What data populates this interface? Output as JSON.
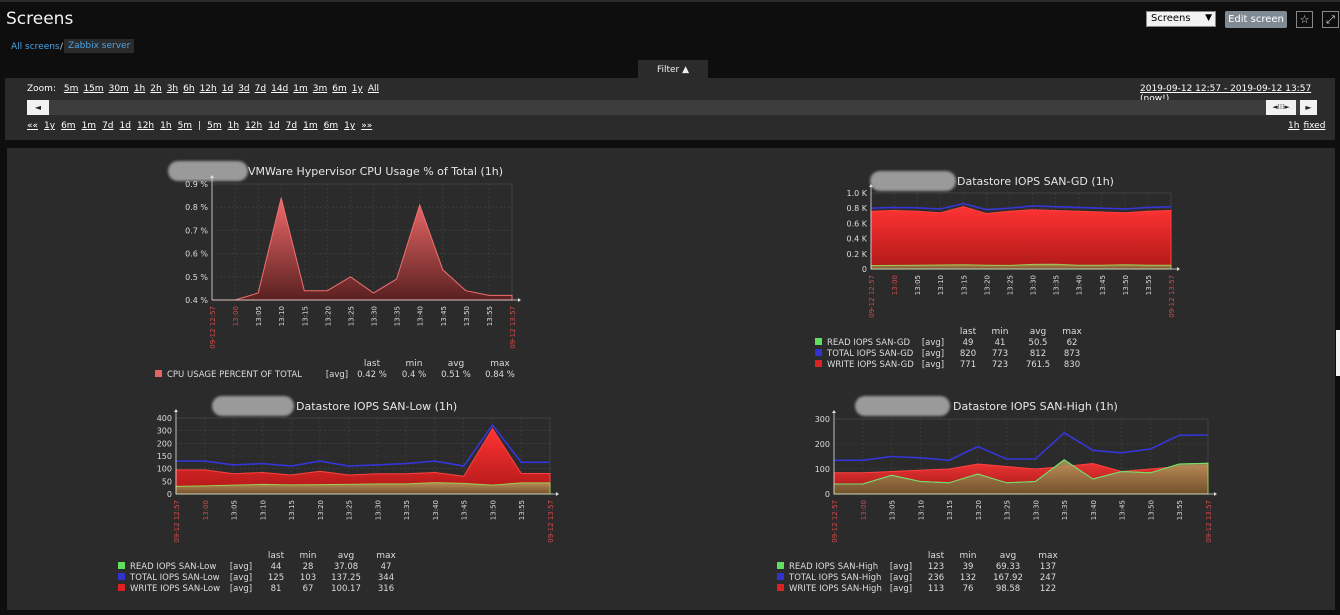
{
  "header": {
    "title": "Screens",
    "screen_select": "Screens",
    "edit_button": "Edit screen",
    "fav_icon": "star-icon",
    "fullscreen_icon": "fullscreen-icon"
  },
  "breadcrumb": {
    "root": "All screens",
    "separator": "/",
    "current": "Zabbix server"
  },
  "filter": {
    "tab_label": "Filter ▲",
    "zoom_label": "Zoom:",
    "zoom_options": [
      "5m",
      "15m",
      "30m",
      "1h",
      "2h",
      "3h",
      "6h",
      "12h",
      "1d",
      "3d",
      "7d",
      "14d",
      "1m",
      "3m",
      "6m",
      "1y",
      "All"
    ],
    "time_range": "2019-09-12 12:57 - 2019-09-12 13:57 (now!)",
    "nav_back": [
      "««",
      "1y",
      "6m",
      "1m",
      "7d",
      "1d",
      "12h",
      "1h",
      "5m"
    ],
    "nav_sep": "|",
    "nav_fwd": [
      "5m",
      "1h",
      "12h",
      "1d",
      "7d",
      "1m",
      "6m",
      "1y",
      "»»"
    ],
    "period": [
      "1h",
      "fixed"
    ]
  },
  "graphs": [
    {
      "id": "cpu",
      "title": "VMWare Hypervisor CPU Usage % of Total (1h)",
      "y_ticks": [
        "0.9 %",
        "0.8 %",
        "0.7 %",
        "0.6 %",
        "0.5 %",
        "0.4 %"
      ],
      "x_start": "09-12 12:57",
      "x_end": "09-12 13:57",
      "x_ticks": [
        "13:00",
        "13:05",
        "13:10",
        "13:15",
        "13:20",
        "13:25",
        "13:30",
        "13:35",
        "13:40",
        "13:45",
        "13:50",
        "13:55"
      ],
      "legend_header": [
        "last",
        "min",
        "avg",
        "max"
      ],
      "legend": [
        {
          "name": "CPU USAGE PERCENT OF TOTAL",
          "func": "[avg]",
          "last": "0.42 %",
          "min": "0.4 %",
          "avg": "0.51 %",
          "max": "0.84 %",
          "color": "#e06666"
        }
      ]
    },
    {
      "id": "san-gd",
      "title": "Datastore IOPS SAN-GD (1h)",
      "y_ticks": [
        "1.0 K",
        "0.8 K",
        "0.6 K",
        "0.4 K",
        "0.2 K",
        "0"
      ],
      "x_start": "09-12 12:57",
      "x_end": "09-12 13:57",
      "x_ticks": [
        "13:00",
        "13:05",
        "13:10",
        "13:15",
        "13:20",
        "13:25",
        "13:30",
        "13:35",
        "13:40",
        "13:45",
        "13:50",
        "13:55"
      ],
      "legend_header": [
        "last",
        "min",
        "avg",
        "max"
      ],
      "legend": [
        {
          "name": "READ IOPS SAN-GD",
          "func": "[avg]",
          "last": "49",
          "min": "41",
          "avg": "50.5",
          "max": "62",
          "color": "#5ee05e"
        },
        {
          "name": "TOTAL IOPS SAN-GD",
          "func": "[avg]",
          "last": "820",
          "min": "773",
          "avg": "812",
          "max": "873",
          "color": "#3333cc"
        },
        {
          "name": "WRITE IOPS SAN-GD",
          "func": "[avg]",
          "last": "771",
          "min": "723",
          "avg": "761.5",
          "max": "830",
          "color": "#dd2222"
        }
      ]
    },
    {
      "id": "san-low",
      "title": "Datastore IOPS SAN-Low (1h)",
      "y_ticks": [
        "400",
        "300",
        "200",
        "150",
        "100",
        "50",
        "0"
      ],
      "x_start": "09-12 12:57",
      "x_end": "09-12 13:57",
      "x_ticks": [
        "13:00",
        "13:05",
        "13:10",
        "13:15",
        "13:20",
        "13:25",
        "13:30",
        "13:35",
        "13:40",
        "13:45",
        "13:50",
        "13:55"
      ],
      "legend_header": [
        "last",
        "min",
        "avg",
        "max"
      ],
      "legend": [
        {
          "name": "READ IOPS SAN-Low",
          "func": "[avg]",
          "last": "44",
          "min": "28",
          "avg": "37.08",
          "max": "47",
          "color": "#5ee05e"
        },
        {
          "name": "TOTAL IOPS SAN-Low",
          "func": "[avg]",
          "last": "125",
          "min": "103",
          "avg": "137.25",
          "max": "344",
          "color": "#3333cc"
        },
        {
          "name": "WRITE IOPS SAN-Low",
          "func": "[avg]",
          "last": "81",
          "min": "67",
          "avg": "100.17",
          "max": "316",
          "color": "#dd2222"
        }
      ]
    },
    {
      "id": "san-high",
      "title": "Datastore IOPS SAN-High (1h)",
      "y_ticks": [
        "300",
        "200",
        "100",
        "0"
      ],
      "x_start": "09-12 12:57",
      "x_end": "09-12 13:57",
      "x_ticks": [
        "13:00",
        "13:05",
        "13:10",
        "13:15",
        "13:20",
        "13:25",
        "13:30",
        "13:35",
        "13:40",
        "13:45",
        "13:50",
        "13:55"
      ],
      "legend_header": [
        "last",
        "min",
        "avg",
        "max"
      ],
      "legend": [
        {
          "name": "READ IOPS SAN-High",
          "func": "[avg]",
          "last": "123",
          "min": "39",
          "avg": "69.33",
          "max": "137",
          "color": "#5ee05e"
        },
        {
          "name": "TOTAL IOPS SAN-High",
          "func": "[avg]",
          "last": "236",
          "min": "132",
          "avg": "167.92",
          "max": "247",
          "color": "#3333cc"
        },
        {
          "name": "WRITE IOPS SAN-High",
          "func": "[avg]",
          "last": "113",
          "min": "76",
          "avg": "98.58",
          "max": "122",
          "color": "#dd2222"
        }
      ]
    }
  ],
  "chart_data": [
    {
      "type": "area",
      "title": "VMWare Hypervisor CPU Usage % of Total (1h)",
      "x": [
        "12:57",
        "13:00",
        "13:05",
        "13:10",
        "13:15",
        "13:20",
        "13:25",
        "13:30",
        "13:35",
        "13:40",
        "13:45",
        "13:50",
        "13:55",
        "13:57"
      ],
      "ylim": [
        0.4,
        0.9
      ],
      "series": [
        {
          "name": "CPU USAGE PERCENT OF TOTAL",
          "values": [
            0.4,
            0.4,
            0.43,
            0.84,
            0.44,
            0.44,
            0.5,
            0.43,
            0.49,
            0.81,
            0.53,
            0.44,
            0.42,
            0.42
          ]
        }
      ]
    },
    {
      "type": "area",
      "title": "Datastore IOPS SAN-GD (1h)",
      "x": [
        "12:57",
        "13:00",
        "13:05",
        "13:10",
        "13:15",
        "13:20",
        "13:25",
        "13:30",
        "13:35",
        "13:40",
        "13:45",
        "13:50",
        "13:55",
        "13:57"
      ],
      "ylim": [
        0,
        1000
      ],
      "series": [
        {
          "name": "READ IOPS SAN-GD",
          "values": [
            45,
            48,
            50,
            52,
            55,
            50,
            48,
            60,
            62,
            50,
            49,
            55,
            50,
            49
          ]
        },
        {
          "name": "TOTAL IOPS SAN-GD",
          "values": [
            800,
            810,
            805,
            790,
            860,
            780,
            800,
            830,
            820,
            810,
            800,
            790,
            810,
            820
          ]
        },
        {
          "name": "WRITE IOPS SAN-GD",
          "values": [
            760,
            770,
            760,
            740,
            820,
            730,
            760,
            780,
            770,
            760,
            750,
            740,
            760,
            771
          ]
        }
      ]
    },
    {
      "type": "area",
      "title": "Datastore IOPS SAN-Low (1h)",
      "x": [
        "12:57",
        "13:00",
        "13:05",
        "13:10",
        "13:15",
        "13:20",
        "13:25",
        "13:30",
        "13:35",
        "13:40",
        "13:45",
        "13:50",
        "13:55",
        "13:57"
      ],
      "ylim": [
        0,
        400
      ],
      "series": [
        {
          "name": "READ IOPS SAN-Low",
          "values": [
            30,
            32,
            35,
            38,
            36,
            37,
            38,
            40,
            40,
            45,
            42,
            35,
            44,
            44
          ]
        },
        {
          "name": "TOTAL IOPS SAN-Low",
          "values": [
            130,
            130,
            115,
            120,
            110,
            130,
            110,
            115,
            120,
            130,
            110,
            344,
            125,
            125
          ]
        },
        {
          "name": "WRITE IOPS SAN-Low",
          "values": [
            95,
            95,
            80,
            85,
            75,
            90,
            75,
            80,
            80,
            85,
            70,
            316,
            81,
            81
          ]
        }
      ]
    },
    {
      "type": "area",
      "title": "Datastore IOPS SAN-High (1h)",
      "x": [
        "12:57",
        "13:00",
        "13:05",
        "13:10",
        "13:15",
        "13:20",
        "13:25",
        "13:30",
        "13:35",
        "13:40",
        "13:45",
        "13:50",
        "13:55",
        "13:57"
      ],
      "ylim": [
        0,
        300
      ],
      "series": [
        {
          "name": "READ IOPS SAN-High",
          "values": [
            40,
            40,
            75,
            50,
            45,
            80,
            45,
            50,
            137,
            60,
            90,
            85,
            120,
            123
          ]
        },
        {
          "name": "TOTAL IOPS SAN-High",
          "values": [
            135,
            135,
            150,
            145,
            135,
            190,
            140,
            140,
            245,
            175,
            165,
            180,
            235,
            236
          ]
        },
        {
          "name": "WRITE IOPS SAN-High",
          "values": [
            85,
            85,
            90,
            95,
            100,
            120,
            110,
            100,
            110,
            122,
            90,
            100,
            110,
            113
          ]
        }
      ]
    }
  ]
}
